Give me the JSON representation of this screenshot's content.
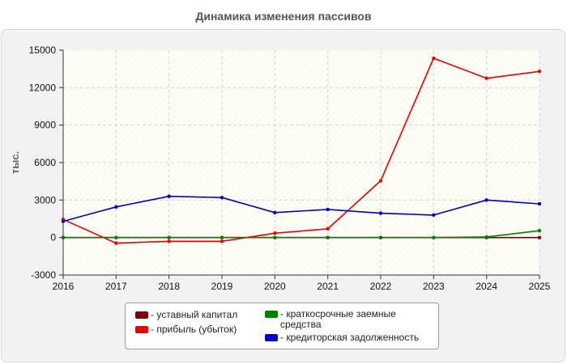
{
  "chart_data": {
    "type": "line",
    "title": "Динамика изменения пассивов",
    "ylabel": "тыс.",
    "xlabel": "",
    "x": [
      "2016",
      "2017",
      "2018",
      "2019",
      "2020",
      "2021",
      "2022",
      "2023",
      "2024",
      "2025"
    ],
    "y_ticks": [
      "-3000",
      "0",
      "3000",
      "6000",
      "9000",
      "12000",
      "15000"
    ],
    "ylim": [
      -3000,
      15000
    ],
    "grid": true,
    "legend_position": "bottom",
    "series": [
      {
        "name": "- уставный капитал",
        "color": "#800000",
        "values": [
          0,
          0,
          0,
          0,
          0,
          0,
          0,
          0,
          0,
          0
        ]
      },
      {
        "name": "- прибыль (убыток)",
        "color": "#ee0000",
        "values": [
          1450,
          -450,
          -300,
          -300,
          350,
          700,
          4550,
          14350,
          12750,
          13300
        ]
      },
      {
        "name": "- краткосрочные заемные средства",
        "color": "#008000",
        "values": [
          0,
          0,
          0,
          0,
          0,
          0,
          0,
          0,
          50,
          550
        ]
      },
      {
        "name": "- кредиторская задолженность",
        "color": "#0000cc",
        "values": [
          1300,
          2450,
          3300,
          3200,
          2000,
          2250,
          1950,
          1800,
          3000,
          2700
        ]
      }
    ]
  }
}
